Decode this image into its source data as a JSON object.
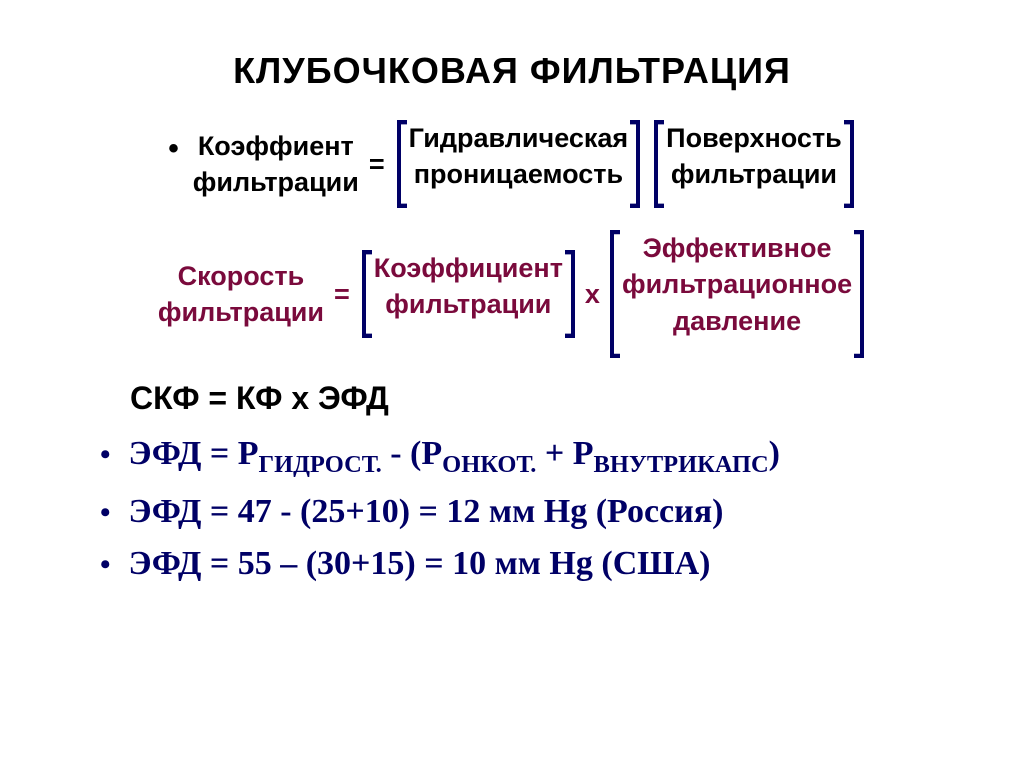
{
  "title": {
    "text": "КЛУБОЧКОВАЯ  ФИЛЬТРАЦИЯ",
    "fontsize": 36,
    "color": "#000000"
  },
  "row1": {
    "left": {
      "l1": "Коэффиент",
      "l2": "фильтрации"
    },
    "mid": {
      "l1": "Гидравлическая",
      "l2": "проницаемость"
    },
    "right": {
      "l1": "Поверхность",
      "l2": "фильтрации"
    },
    "eq": "=",
    "fontsize": 27,
    "color": "#000000",
    "bracket_color": "#000066"
  },
  "row2": {
    "left": {
      "l1": "Скорость",
      "l2": "фильтрации"
    },
    "mid": {
      "l1": "Коэффициент",
      "l2": "фильтрации"
    },
    "right": {
      "l1": "Эффективное",
      "l2": "фильтрационное",
      "l3": "давление"
    },
    "eq": "=",
    "mult": "х",
    "fontsize": 27,
    "color": "#7a0a3c",
    "bracket_color": "#000066"
  },
  "formula": {
    "text": "СКФ =  КФ  х  ЭФД",
    "fontsize": 32,
    "color": "#000000"
  },
  "bulletStyle": {
    "fontsize": 34,
    "color": "#000066"
  },
  "b1": {
    "prefix": "ЭФД = Р",
    "s1": "ГИДРОСТ.",
    "mid1": " - (Р",
    "s2": "ОНКОТ.",
    "mid2": " + Р",
    "s3": "ВНУТРИКАПС",
    "suffix": ")"
  },
  "b2": {
    "text": "ЭФД = 47 - (25+10) = 12 мм Hg (Россия)"
  },
  "b3": {
    "text": "ЭФД = 55 – (30+15) = 10 мм Hg (США)"
  }
}
